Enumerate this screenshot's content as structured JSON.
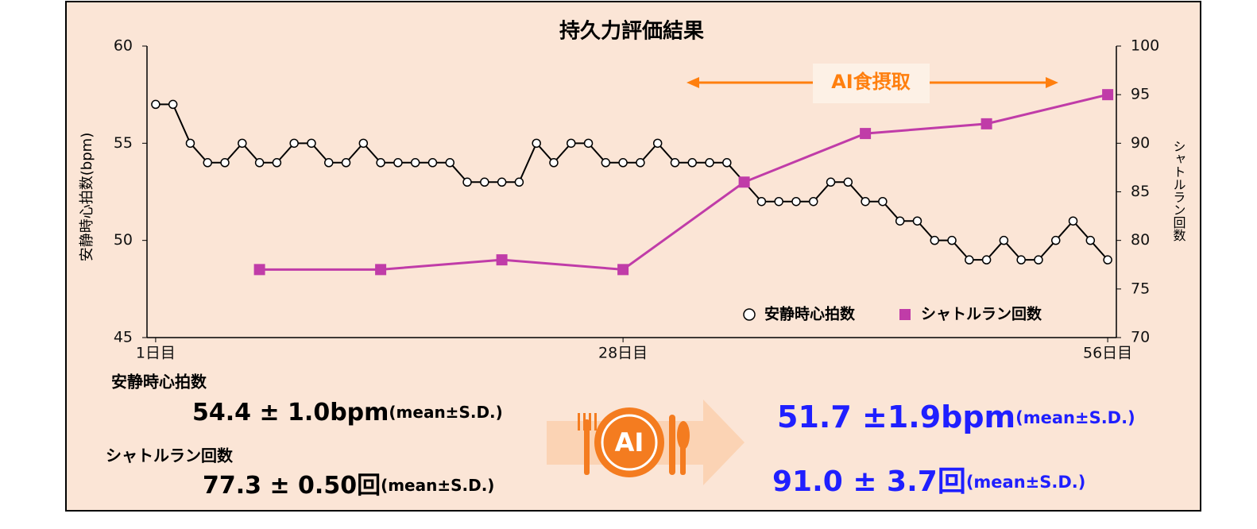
{
  "chart_data": {
    "type": "line",
    "title": "持久力評価結果",
    "ylabel": "安静時心拍数(bpm)",
    "y2label": "シャトルラン回数",
    "xlim": [
      0.5,
      56.5
    ],
    "xticks": [
      {
        "value": 1,
        "label": "1日目"
      },
      {
        "value": 28,
        "label": "28日目"
      },
      {
        "value": 56,
        "label": "56日目"
      }
    ],
    "ylim": [
      45,
      60
    ],
    "yticks": [
      45,
      50,
      55,
      60
    ],
    "y2lim": [
      70,
      100
    ],
    "y2ticks": [
      70,
      75,
      80,
      85,
      90,
      95,
      100
    ],
    "grid": false,
    "legend": "lower right",
    "annotation": "AI食摂取",
    "series": [
      {
        "name": "安静時心拍数",
        "color": "#000000",
        "marker": "circle",
        "x": [
          1,
          2,
          3,
          4,
          5,
          6,
          7,
          8,
          9,
          10,
          11,
          12,
          13,
          14,
          15,
          16,
          17,
          18,
          19,
          20,
          21,
          22,
          23,
          24,
          25,
          26,
          27,
          28,
          29,
          30,
          31,
          32,
          33,
          34,
          35,
          36,
          37,
          38,
          39,
          40,
          41,
          42,
          43,
          44,
          45,
          46,
          47,
          48,
          49,
          50,
          51,
          52,
          53,
          54,
          55,
          56
        ],
        "values": [
          57,
          57,
          55,
          54,
          54,
          55,
          54,
          54,
          55,
          55,
          54,
          54,
          55,
          54,
          54,
          54,
          54,
          54,
          53,
          53,
          53,
          53,
          55,
          54,
          55,
          55,
          54,
          54,
          54,
          55,
          54,
          54,
          54,
          54,
          53,
          52,
          52,
          52,
          52,
          53,
          53,
          52,
          52,
          51,
          51,
          50,
          50,
          49,
          49,
          50,
          49,
          49,
          50,
          51,
          50,
          49
        ]
      },
      {
        "name": "シャトルラン回数",
        "color": "#c03ca8",
        "marker": "square",
        "axis": "y2",
        "x": [
          7,
          14,
          21,
          28,
          35,
          42,
          49,
          56
        ],
        "values": [
          77,
          77,
          78,
          77,
          86,
          91,
          92,
          95
        ]
      }
    ]
  },
  "summary": {
    "icon_text": "AI",
    "before": [
      {
        "label": "安静時心拍数",
        "value": "54.4 ± 1.0bpm",
        "note": "(mean±S.D.)"
      },
      {
        "label": "シャトルラン回数",
        "value": "77.3 ± 0.50回",
        "note": "(mean±S.D.)"
      }
    ],
    "after": [
      {
        "value": "51.7 ±1.9bpm",
        "note": "(mean±S.D.)"
      },
      {
        "value": "91.0 ± 3.7回",
        "note": "(mean±S.D.)"
      }
    ]
  }
}
